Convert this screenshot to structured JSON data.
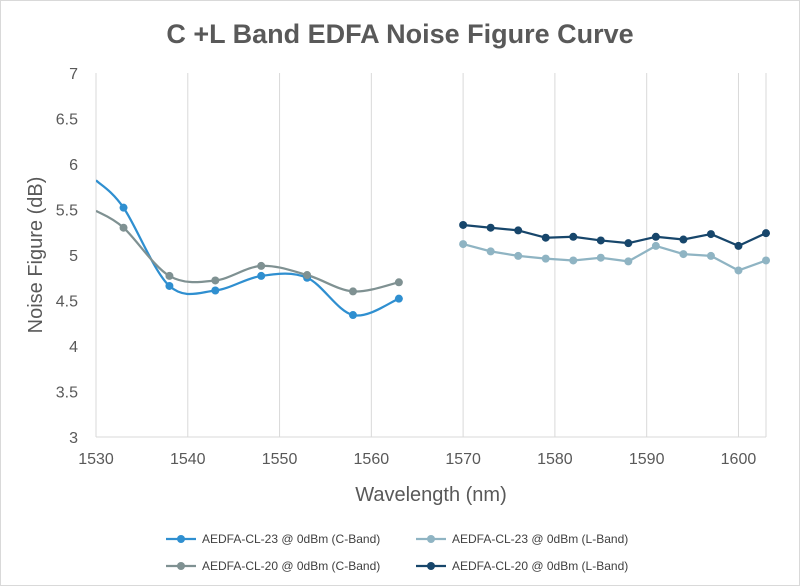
{
  "chart_data": {
    "type": "line",
    "title": "C +L Band EDFA Noise Figure Curve",
    "xlabel": "Wavelength (nm)",
    "ylabel": "Noise Figure (dB)",
    "xlim": [
      1530,
      1603
    ],
    "ylim": [
      3,
      7
    ],
    "xticks": [
      1530,
      1540,
      1550,
      1560,
      1570,
      1580,
      1590,
      1600
    ],
    "yticks": [
      "3",
      "3.5",
      "4",
      "4.5",
      "5",
      "5.5",
      "6",
      "6.5",
      "7"
    ],
    "grid": "vertical",
    "legend_position": "bottom",
    "series": [
      {
        "name": "AEDFA-CL-23 @ 0dBm  (C-Band)",
        "color": "#2f8fd0",
        "smooth": true,
        "x": [
          1533,
          1538,
          1543,
          1548,
          1553,
          1558,
          1563
        ],
        "y": [
          5.52,
          4.66,
          4.61,
          4.77,
          4.75,
          4.34,
          4.52
        ]
      },
      {
        "name": "AEDFA-CL-23 @ 0dBm  (L-Band)",
        "color": "#8fb4c3",
        "smooth": false,
        "x": [
          1570,
          1573,
          1576,
          1579,
          1582,
          1585,
          1588,
          1591,
          1594,
          1597,
          1600,
          1603
        ],
        "y": [
          5.12,
          5.04,
          4.99,
          4.96,
          4.94,
          4.97,
          4.93,
          5.1,
          5.01,
          4.99,
          4.83,
          4.94
        ]
      },
      {
        "name": "AEDFA-CL-20 @ 0dBm  (C-Band)",
        "color": "#7f9192",
        "smooth": true,
        "x": [
          1533,
          1538,
          1543,
          1548,
          1553,
          1558,
          1563
        ],
        "y": [
          5.3,
          4.77,
          4.72,
          4.88,
          4.78,
          4.6,
          4.7
        ]
      },
      {
        "name": "AEDFA-CL-20 @ 0dBm  (L-Band)",
        "color": "#17466b",
        "smooth": false,
        "x": [
          1570,
          1573,
          1576,
          1579,
          1582,
          1585,
          1588,
          1591,
          1594,
          1597,
          1600,
          1603
        ],
        "y": [
          5.33,
          5.3,
          5.27,
          5.19,
          5.2,
          5.16,
          5.13,
          5.2,
          5.17,
          5.23,
          5.1,
          5.24
        ]
      }
    ]
  }
}
